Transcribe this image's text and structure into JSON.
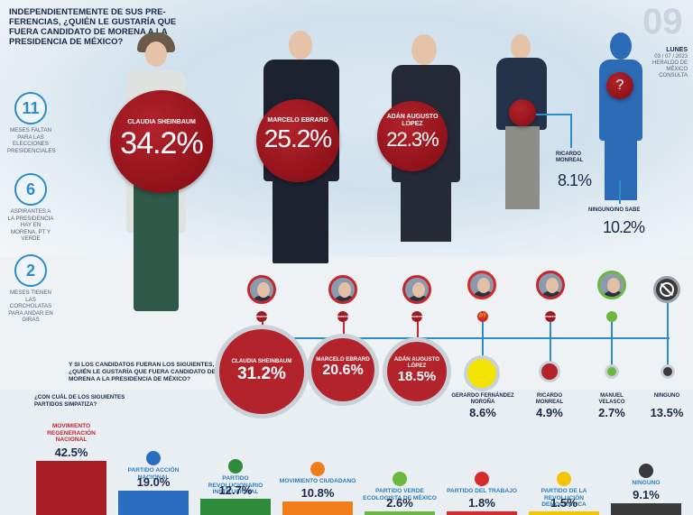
{
  "header": {
    "question": "INDEPENDIENTEMENTE DE SUS PRE-FERENCIAS, ¿QUIÉN LE GUSTARÍA QUE FUERA CANDIDATO DE MORENA A LA PRESIDENCIA DE MÉXICO?",
    "page_number": "09",
    "weekday": "LUNES",
    "date": "03 / 07 / 2023",
    "section": "HERALDO DE MÉXICO",
    "subsection": "CONSULTA"
  },
  "stats": [
    {
      "number": "11",
      "text": "MESES FALTAN PARA LAS ELECCIONES PRESIDENCIALES"
    },
    {
      "number": "6",
      "text": "ASPIRANTES A LA PRESIDENCIA HAY EN MORENA, PT Y VERDE"
    },
    {
      "number": "2",
      "text": "MESES TIENEN LAS CORCHOLATAS PARA ANDAR EN GIRAS"
    }
  ],
  "top_results": [
    {
      "name": "CLAUDIA SHEINBAUM",
      "pct": "34.2%",
      "value": 34.2
    },
    {
      "name": "MARCELO EBRARD",
      "pct": "25.2%",
      "value": 25.2
    },
    {
      "name": "ADÁN AUGUSTO LÓPEZ",
      "pct": "22.3%",
      "value": 22.3
    },
    {
      "name": "RICARDO MONREAL",
      "pct": "8.1%",
      "value": 8.1
    },
    {
      "name": "NINGUNO/NO SABE",
      "pct": "10.2%",
      "value": 10.2
    }
  ],
  "unknown_symbol": "?",
  "second_question": "Y SI LOS CANDIDATOS FUERAN LOS SIGUIENTES, ¿QUIÉN LE GUSTARÍA QUE FUERA CANDIDATO DE MORENA A LA PRESIDENCIA DE MÉXICO?",
  "second_results": [
    {
      "name": "CLAUDIA SHEINBAUM",
      "pct": "31.2%",
      "value": 31.2
    },
    {
      "name": "MARCELO EBRARD",
      "pct": "20.6%",
      "value": 20.6
    },
    {
      "name": "ADÁN AUGUSTO LÓPEZ",
      "pct": "18.5%",
      "value": 18.5
    },
    {
      "name": "GERARDO FERNÁNDEZ NOROÑA",
      "pct": "8.6%",
      "value": 8.6
    },
    {
      "name": "RICARDO MONREAL",
      "pct": "4.9%",
      "value": 4.9
    },
    {
      "name": "MANUEL VELASCO",
      "pct": "2.7%",
      "value": 2.7
    },
    {
      "name": "NINGUNO",
      "pct": "13.5%",
      "value": 13.5
    }
  ],
  "logo_labels": {
    "morena": "morena",
    "pt": "PT",
    "pan": "PAN"
  },
  "third_question": "¿CON CUÁL DE LOS SIGUIENTES PARTIDOS SIMPATIZA?",
  "parties": [
    {
      "name": "MOVIMIENTO REGENERACIÓN NACIONAL",
      "pct": "42.5%",
      "value": 42.5,
      "color": "#a81c25"
    },
    {
      "name": "PARTIDO ACCIÓN NACIONAL",
      "pct": "19.0%",
      "value": 19.0,
      "color": "#2a6ec0"
    },
    {
      "name": "PARTIDO REVOLUCIONARIO INSTITUCIONAL",
      "pct": "12.7%",
      "value": 12.7,
      "color": "#2e8b3a"
    },
    {
      "name": "MOVIMIENTO CIUDADANO",
      "pct": "10.8%",
      "value": 10.8,
      "color": "#ef7d1a"
    },
    {
      "name": "PARTIDO VERDE ECOLOGISTA DE MÉXICO",
      "pct": "2.6%",
      "value": 2.6,
      "color": "#6bb83f"
    },
    {
      "name": "PARTIDO DEL TRABAJO",
      "pct": "1.8%",
      "value": 1.8,
      "color": "#d62b2b"
    },
    {
      "name": "PARTIDO DE LA REVOLUCIÓN DEMOCRÁTICA",
      "pct": "1.5%",
      "value": 1.5,
      "color": "#f2c500"
    },
    {
      "name": "NINGUNO",
      "pct": "9.1%",
      "value": 9.1,
      "color": "#3a3a3a"
    }
  ]
}
